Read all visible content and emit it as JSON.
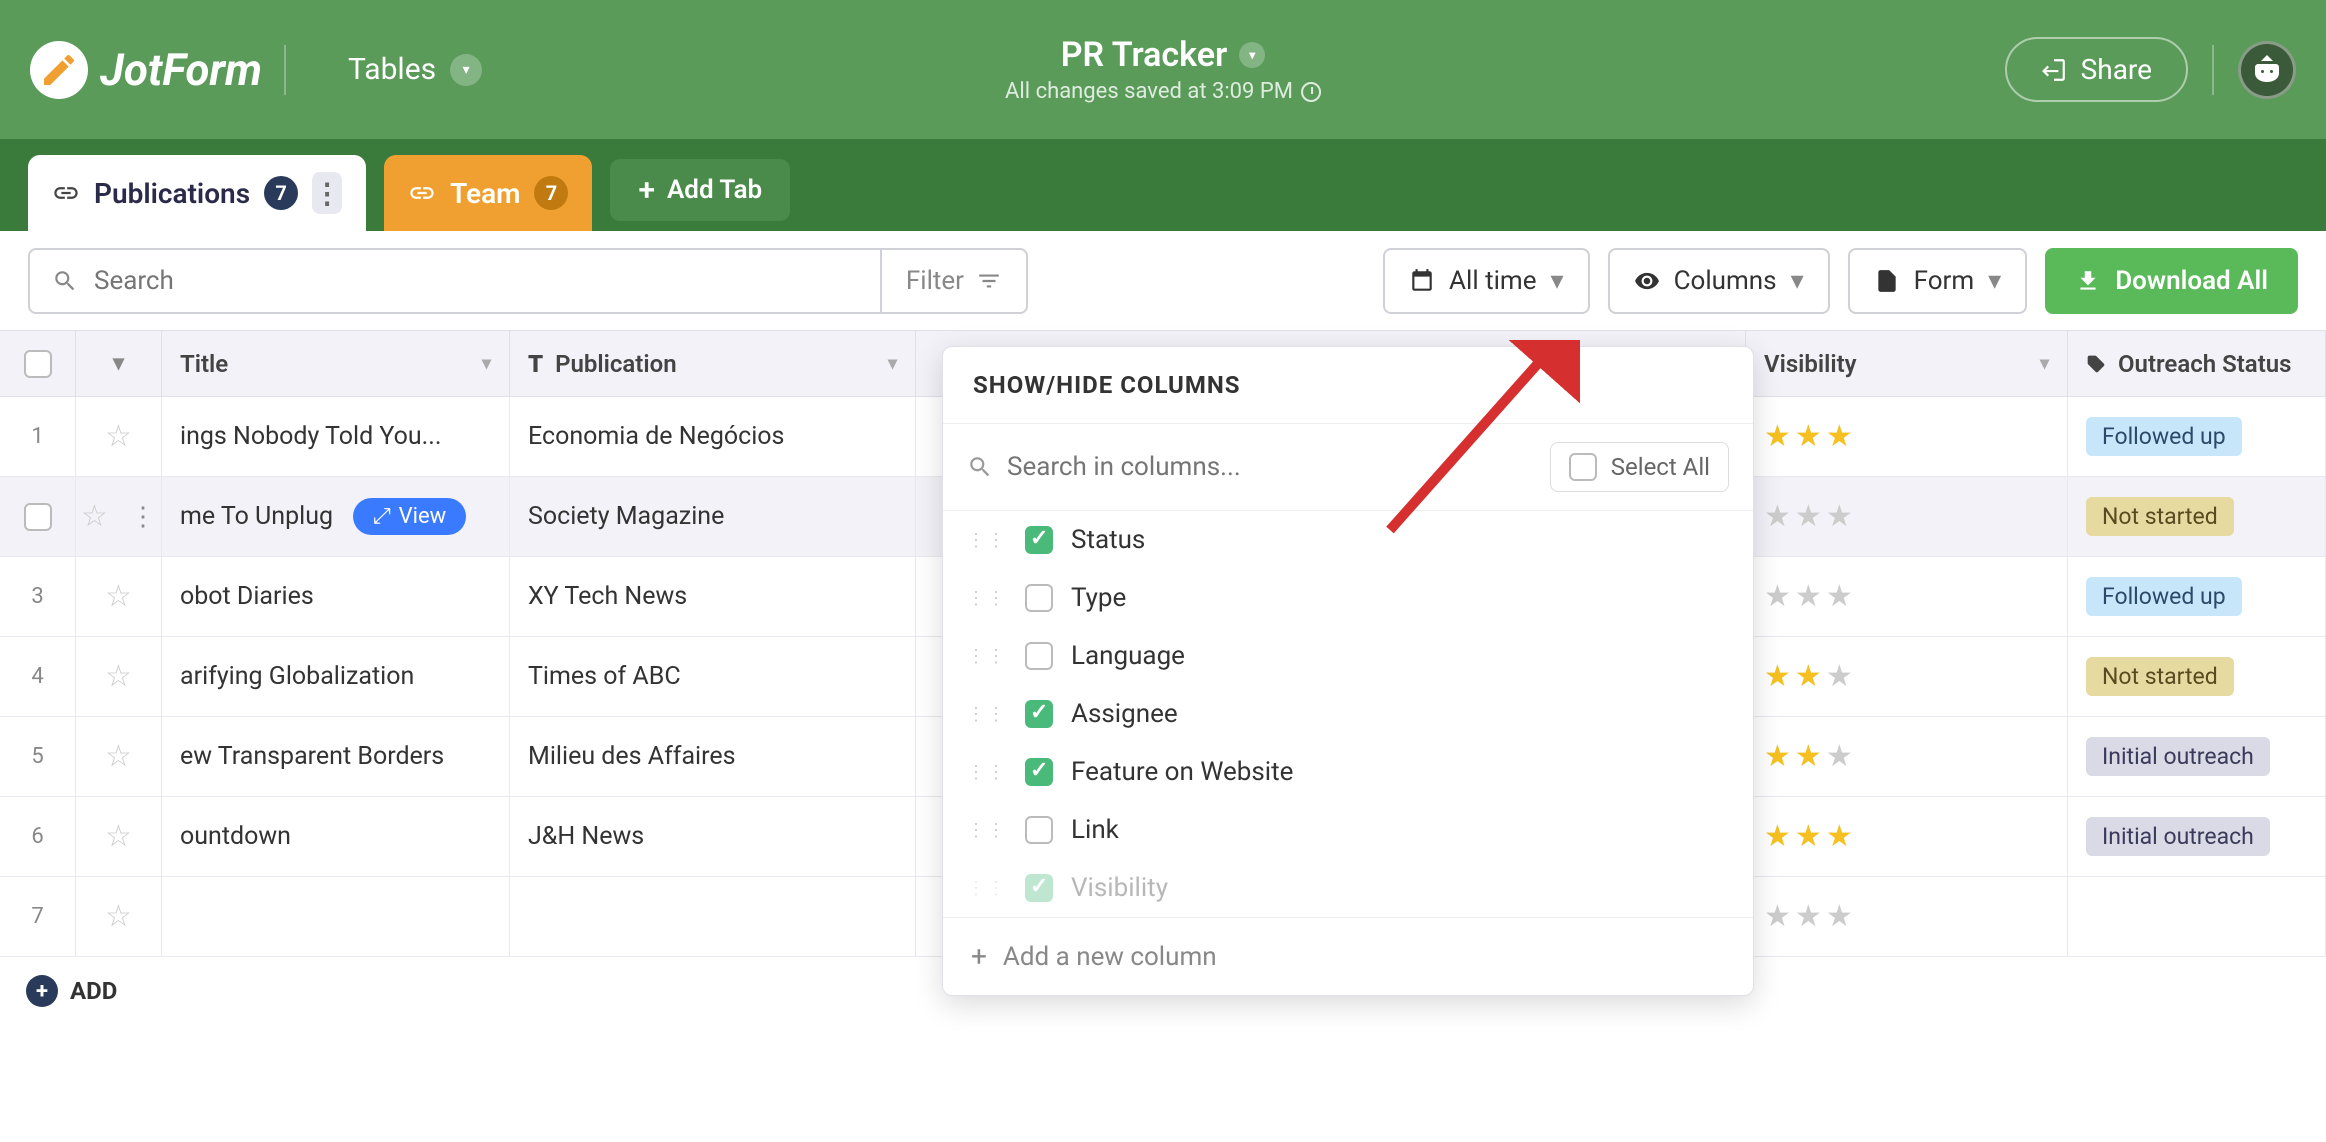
{
  "header": {
    "logo_text": "JotForm",
    "tables_label": "Tables",
    "page_title": "PR Tracker",
    "save_status": "All changes saved at 3:09 PM",
    "share_label": "Share"
  },
  "tabs": {
    "publications": {
      "label": "Publications",
      "count": "7"
    },
    "team": {
      "label": "Team",
      "count": "7"
    },
    "add_label": "Add Tab"
  },
  "toolbar": {
    "search_placeholder": "Search",
    "filter_label": "Filter",
    "time_label": "All time",
    "columns_label": "Columns",
    "form_label": "Form",
    "download_label": "Download All"
  },
  "columns": {
    "title": "Title",
    "publication": "Publication",
    "visibility": "Visibility",
    "outreach": "Outreach Status"
  },
  "rows": [
    {
      "num": "1",
      "title": "ings Nobody Told You...",
      "pub": "Economia de Negócios",
      "stars": 3,
      "status_key": "followed",
      "status": "Followed up"
    },
    {
      "num": "",
      "title": "me To Unplug",
      "pub": "Society Magazine",
      "stars": 0,
      "status_key": "not-started",
      "status": "Not started",
      "has_view": true
    },
    {
      "num": "3",
      "title": "obot Diaries",
      "pub": "XY Tech News",
      "stars": 0,
      "status_key": "followed",
      "status": "Followed up"
    },
    {
      "num": "4",
      "title": "arifying Globalization",
      "pub": "Times of ABC",
      "stars": 2,
      "status_key": "not-started",
      "status": "Not started"
    },
    {
      "num": "5",
      "title": "ew Transparent Borders",
      "pub": "Milieu des Affaires",
      "stars": 2,
      "status_key": "initial",
      "status": "Initial outreach"
    },
    {
      "num": "6",
      "title": "ountdown",
      "pub": "J&H News",
      "stars": 3,
      "status_key": "initial",
      "status": "Initial outreach"
    },
    {
      "num": "7",
      "title": "",
      "pub": "",
      "stars": 0,
      "status_key": "",
      "status": ""
    }
  ],
  "view_label": "View",
  "add_row_label": "ADD",
  "dropdown": {
    "heading": "SHOW/HIDE COLUMNS",
    "search_placeholder": "Search in columns...",
    "select_all_label": "Select All",
    "items": [
      {
        "label": "Status",
        "checked": true
      },
      {
        "label": "Type",
        "checked": false
      },
      {
        "label": "Language",
        "checked": false
      },
      {
        "label": "Assignee",
        "checked": true
      },
      {
        "label": "Feature on Website",
        "checked": true
      },
      {
        "label": "Link",
        "checked": false
      },
      {
        "label": "Visibility",
        "checked": true
      }
    ],
    "add_column_label": "Add a new column"
  },
  "colors": {
    "header_bg": "#5a9b5a",
    "tabs_bg": "#3a7a3a",
    "team_tab": "#f0a030",
    "download": "#5aba5a",
    "view_pill": "#3a7aff",
    "star": "#f5c020",
    "check_green": "#4aba7a",
    "arrow": "#d62f2f"
  }
}
